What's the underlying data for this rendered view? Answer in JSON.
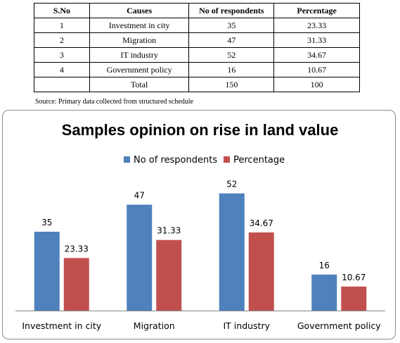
{
  "table": {
    "headers": [
      "S.No",
      "Causes",
      "No of respondents",
      "Percentage"
    ],
    "rows": [
      [
        "1",
        "Investment in city",
        "35",
        "23.33"
      ],
      [
        "2",
        "Migration",
        "47",
        "31.33"
      ],
      [
        "3",
        "IT industry",
        "52",
        "34.67"
      ],
      [
        "4",
        "Government policy",
        "16",
        "10.67"
      ],
      [
        "",
        "Total",
        "150",
        "100"
      ]
    ]
  },
  "source_note": "Source: Primary data collected from structured schedule",
  "chart_data": {
    "type": "bar",
    "title": "Samples opinion on rise in land value",
    "categories": [
      "Investment in city",
      "Migration",
      "IT industry",
      "Government policy"
    ],
    "series": [
      {
        "name": "No of respondents",
        "values": [
          35,
          47,
          52,
          16
        ],
        "labels": [
          "35",
          "47",
          "52",
          "16"
        ],
        "color": "#4f81bd"
      },
      {
        "name": "Percentage",
        "values": [
          23.33,
          31.33,
          34.67,
          10.67
        ],
        "labels": [
          "23.33",
          "31.33",
          "34.67",
          "10.67"
        ],
        "color": "#c0504d"
      }
    ],
    "ylim": [
      0,
      60
    ],
    "grid": false,
    "legend": "top-center",
    "xlabel": "",
    "ylabel": ""
  }
}
